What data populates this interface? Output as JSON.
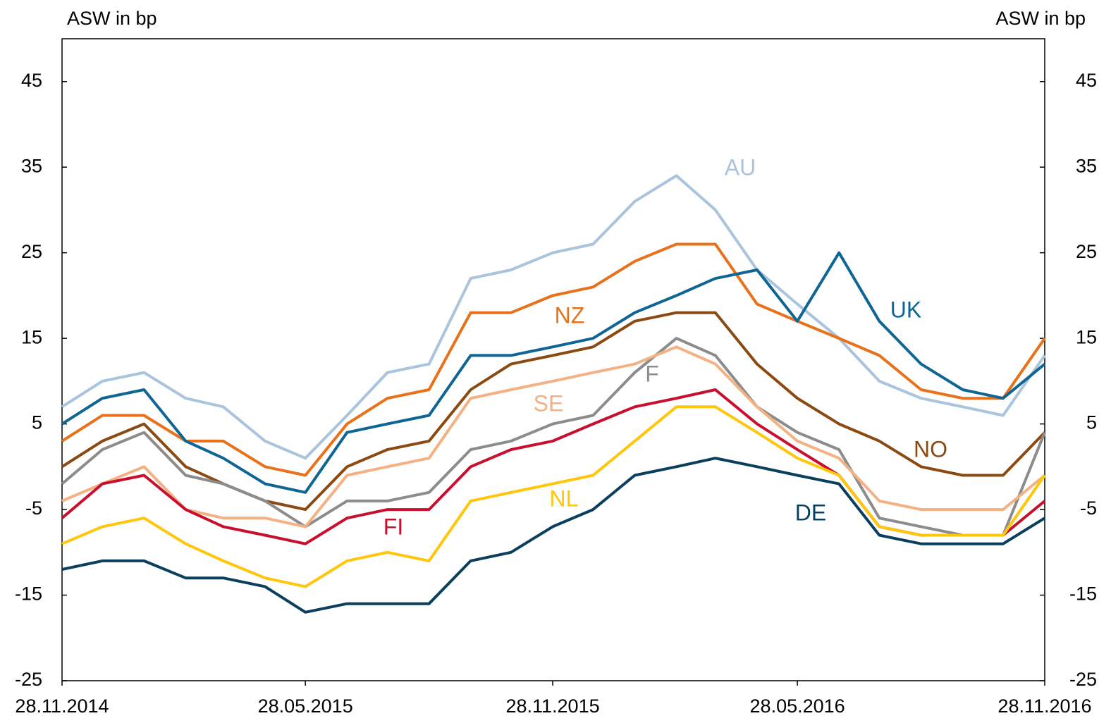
{
  "chart_data": {
    "type": "line",
    "y_label": "ASW in bp",
    "y2_label": "ASW in bp",
    "x": [
      "2014-11-28",
      "2014-12-28",
      "2015-01-28",
      "2015-02-28",
      "2015-03-28",
      "2015-04-28",
      "2015-05-28",
      "2015-06-28",
      "2015-07-28",
      "2015-08-28",
      "2015-09-28",
      "2015-10-28",
      "2015-11-28",
      "2015-12-28",
      "2016-01-28",
      "2016-02-28",
      "2016-03-28",
      "2016-04-28",
      "2016-05-28",
      "2016-06-28",
      "2016-07-28",
      "2016-08-28",
      "2016-09-28",
      "2016-10-28",
      "2016-11-28"
    ],
    "xlim": [
      "2014-11-28",
      "2016-11-28"
    ],
    "xticks": [
      {
        "value": "2014-11-28",
        "label": "28.11.2014"
      },
      {
        "value": "2015-05-28",
        "label": "28.05.2015"
      },
      {
        "value": "2015-11-28",
        "label": "28.11.2015"
      },
      {
        "value": "2016-05-28",
        "label": "28.05.2016"
      },
      {
        "value": "2016-11-28",
        "label": "28.11.2016"
      }
    ],
    "ylim": [
      -25,
      50
    ],
    "yticks": [
      -25,
      -15,
      -5,
      5,
      15,
      25,
      35,
      45
    ],
    "y2lim": [
      -25,
      50
    ],
    "y2ticks": [
      -25,
      -15,
      -5,
      5,
      15,
      25,
      35,
      45
    ],
    "series": [
      {
        "name": "AU",
        "color": "#a9c4dc",
        "values": [
          7,
          10,
          11,
          8,
          7,
          3,
          1,
          6,
          11,
          12,
          22,
          23,
          25,
          26,
          31,
          34,
          30,
          23,
          19,
          15,
          10,
          8,
          7,
          6,
          13
        ]
      },
      {
        "name": "NZ",
        "color": "#e8711b",
        "values": [
          3,
          6,
          6,
          3,
          3,
          0,
          -1,
          5,
          8,
          9,
          18,
          18,
          20,
          21,
          24,
          26,
          26,
          19,
          17,
          15,
          13,
          9,
          8,
          8,
          15
        ]
      },
      {
        "name": "UK",
        "color": "#0f6593",
        "values": [
          5,
          8,
          9,
          3,
          1,
          -2,
          -3,
          4,
          5,
          6,
          13,
          13,
          14,
          15,
          18,
          20,
          22,
          23,
          17,
          25,
          17,
          12,
          9,
          8,
          12
        ]
      },
      {
        "name": "NO",
        "color": "#8b4a12",
        "values": [
          0,
          3,
          5,
          0,
          -2,
          -4,
          -5,
          0,
          2,
          3,
          9,
          12,
          13,
          14,
          17,
          18,
          18,
          12,
          8,
          5,
          3,
          0,
          -1,
          -1,
          4
        ]
      },
      {
        "name": "F",
        "color": "#8c8c8c",
        "values": [
          -2,
          2,
          4,
          -1,
          -2,
          -4,
          -7,
          -4,
          -4,
          -3,
          2,
          3,
          5,
          6,
          11,
          15,
          13,
          7,
          4,
          2,
          -6,
          -7,
          -8,
          -8,
          4
        ]
      },
      {
        "name": "SE",
        "color": "#f4b183",
        "values": [
          -4,
          -2,
          0,
          -5,
          -6,
          -6,
          -7,
          -1,
          0,
          1,
          8,
          9,
          10,
          11,
          12,
          14,
          12,
          7,
          3,
          1,
          -4,
          -5,
          -5,
          -5,
          -1
        ]
      },
      {
        "name": "FI",
        "color": "#c8102e",
        "values": [
          -6,
          -2,
          -1,
          -5,
          -7,
          -8,
          -9,
          -6,
          -5,
          -5,
          0,
          2,
          3,
          5,
          7,
          8,
          9,
          5,
          2,
          -1,
          -7,
          -8,
          -8,
          -8,
          -4
        ]
      },
      {
        "name": "NL",
        "color": "#ffc60b",
        "values": [
          -9,
          -7,
          -6,
          -9,
          -11,
          -13,
          -14,
          -11,
          -10,
          -11,
          -4,
          -3,
          -2,
          -1,
          3,
          7,
          7,
          4,
          1,
          -1,
          -7,
          -8,
          -8,
          -8,
          -1
        ]
      },
      {
        "name": "DE",
        "color": "#0b3f5e",
        "values": [
          -12,
          -11,
          -11,
          -13,
          -13,
          -14,
          -17,
          -16,
          -16,
          -16,
          -11,
          -10,
          -7,
          -5,
          -1,
          0,
          1,
          0,
          -1,
          -2,
          -8,
          -9,
          -9,
          -9,
          -6
        ]
      }
    ]
  }
}
